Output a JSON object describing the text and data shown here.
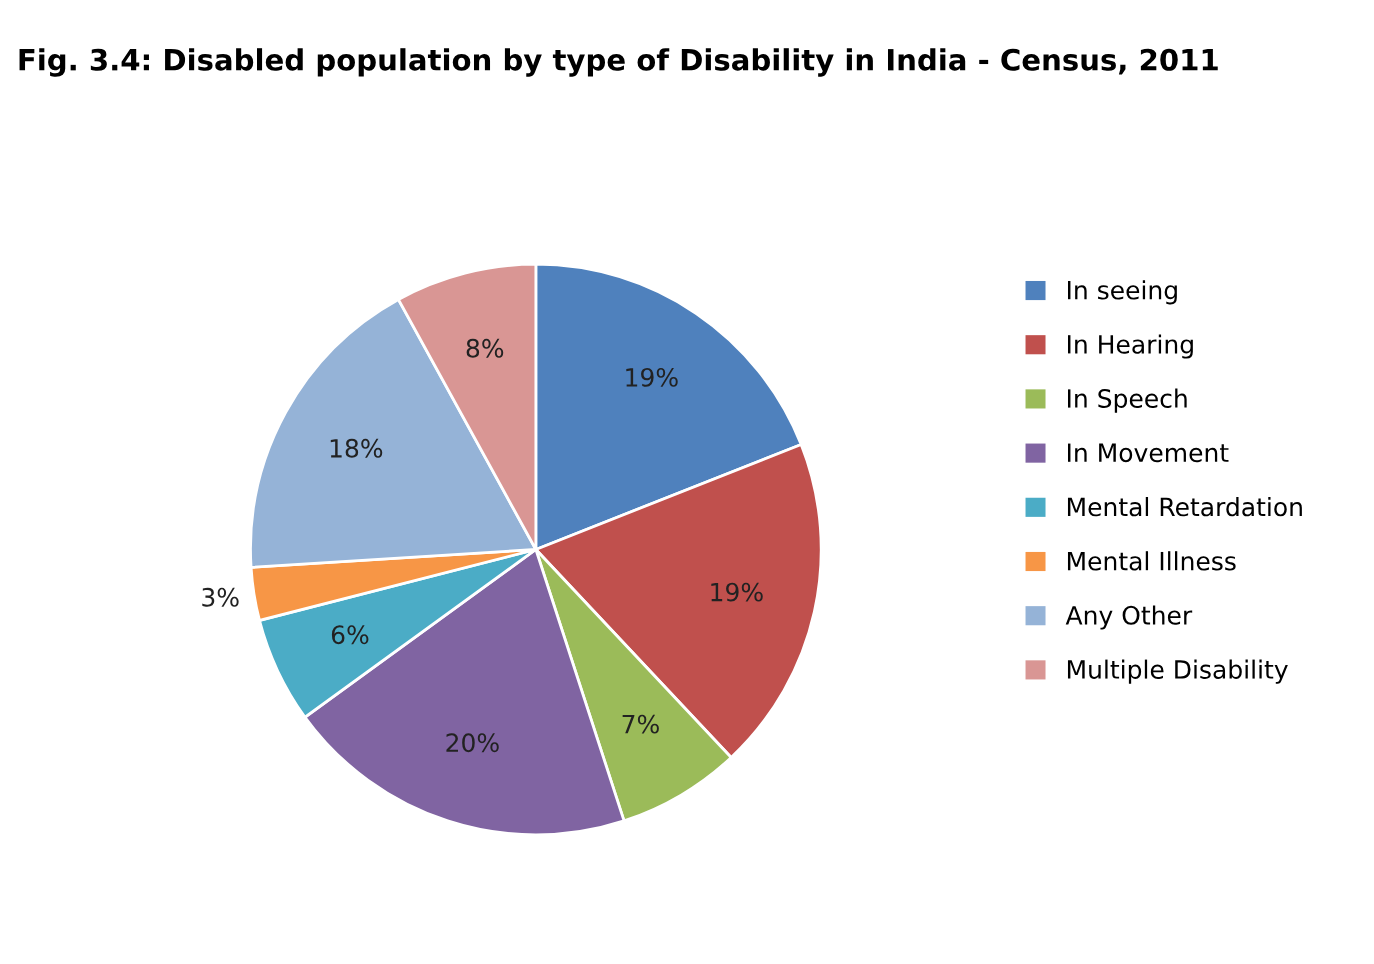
{
  "chart_data": {
    "type": "pie",
    "title": "Fig. 3.4: Disabled population by type of Disability in India - Census, 2011",
    "categories": [
      "In seeing",
      "In Hearing",
      "In Speech",
      "In Movement",
      "Mental Retardation",
      "Mental Illness",
      "Any Other",
      "Multiple Disability"
    ],
    "values": [
      19,
      19,
      7,
      20,
      6,
      3,
      18,
      8
    ],
    "colors": [
      "#4f81bd",
      "#c0504d",
      "#9bbb59",
      "#8064a2",
      "#4bacc6",
      "#f79646",
      "#95b3d7",
      "#d99694"
    ],
    "value_labels": [
      "19%",
      "19%",
      "7%",
      "20%",
      "6%",
      "3%",
      "18%",
      "8%"
    ],
    "legend": "right"
  }
}
